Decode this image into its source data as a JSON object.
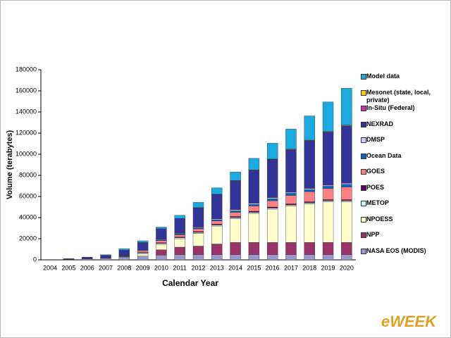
{
  "chart_data": {
    "type": "stacked_bar",
    "x_label": "Calendar Year",
    "y_label": "Volume (terabytes)",
    "categories": [
      "2004",
      "2005",
      "2006",
      "2007",
      "2008",
      "2009",
      "2010",
      "2011",
      "2012",
      "2013",
      "2014",
      "2015",
      "2016",
      "2017",
      "2018",
      "2019",
      "2020"
    ],
    "ylim": [
      0,
      180000
    ],
    "yticks": [
      0,
      20000,
      40000,
      60000,
      80000,
      100000,
      120000,
      140000,
      160000,
      180000
    ],
    "series": [
      {
        "name": "NASA EOS (MODIS)",
        "color": "#9999cc",
        "values": [
          0,
          300,
          800,
          1500,
          2500,
          3500,
          4500,
          5000,
          5000,
          5000,
          5000,
          5000,
          5000,
          5000,
          5000,
          5000,
          5000
        ]
      },
      {
        "name": "NPP",
        "color": "#993366",
        "values": [
          0,
          0,
          0,
          0,
          0,
          0,
          5000,
          7000,
          8000,
          10000,
          11500,
          11500,
          11500,
          11500,
          11500,
          11500,
          11500
        ]
      },
      {
        "name": "NPOESS",
        "color": "#ffffcc",
        "values": [
          0,
          0,
          0,
          0,
          0,
          2000,
          5000,
          8000,
          12000,
          17000,
          22500,
          27500,
          31500,
          34500,
          36500,
          38500,
          38500
        ]
      },
      {
        "name": "METOP",
        "color": "#ccffff",
        "values": [
          0,
          0,
          0,
          0,
          500,
          1000,
          1000,
          1000,
          1000,
          1000,
          1000,
          1000,
          1000,
          1000,
          1000,
          1000,
          1000
        ]
      },
      {
        "name": "POES",
        "color": "#660066",
        "values": [
          0,
          200,
          300,
          300,
          500,
          500,
          700,
          700,
          800,
          800,
          1000,
          1000,
          1000,
          1000,
          1000,
          1000,
          1000
        ]
      },
      {
        "name": "GOES",
        "color": "#ff8080",
        "values": [
          0,
          0,
          0,
          0,
          0,
          1500,
          2000,
          2000,
          2500,
          3000,
          4000,
          5000,
          6000,
          8000,
          9500,
          10500,
          12000
        ]
      },
      {
        "name": "Ocean Data",
        "color": "#0066cc",
        "values": [
          0,
          0,
          0,
          0,
          300,
          500,
          800,
          1000,
          1000,
          1200,
          1500,
          1500,
          1800,
          2000,
          2000,
          2200,
          2500
        ]
      },
      {
        "name": "DMSP",
        "color": "#ccccff",
        "values": [
          0,
          0,
          0,
          0,
          300,
          500,
          500,
          500,
          700,
          800,
          1000,
          1000,
          1000,
          1000,
          1000,
          1000,
          1000
        ]
      },
      {
        "name": "NEXRAD",
        "color": "#333399",
        "values": [
          300,
          700,
          1500,
          2500,
          5000,
          7000,
          10000,
          14000,
          18000,
          23000,
          27000,
          31000,
          36000,
          40000,
          45000,
          50000,
          54000
        ]
      },
      {
        "name": "In-Situ (Federal)",
        "color": "#cc3399",
        "values": [
          0,
          0,
          0,
          0,
          0,
          0,
          0,
          0,
          200,
          200,
          300,
          300,
          300,
          400,
          400,
          400,
          500
        ]
      },
      {
        "name": "Mesonet (state, local, private)",
        "color": "#ffcc00",
        "values": [
          0,
          0,
          0,
          0,
          0,
          0,
          0,
          0,
          200,
          200,
          300,
          300,
          300,
          400,
          400,
          400,
          500
        ]
      },
      {
        "name": "Model data",
        "color": "#1aa9e0",
        "values": [
          0,
          0,
          0,
          500,
          1500,
          1500,
          1500,
          3000,
          5000,
          6000,
          8000,
          11000,
          15000,
          19000,
          23000,
          28000,
          35000
        ]
      }
    ],
    "watermark": "eWEEK"
  }
}
